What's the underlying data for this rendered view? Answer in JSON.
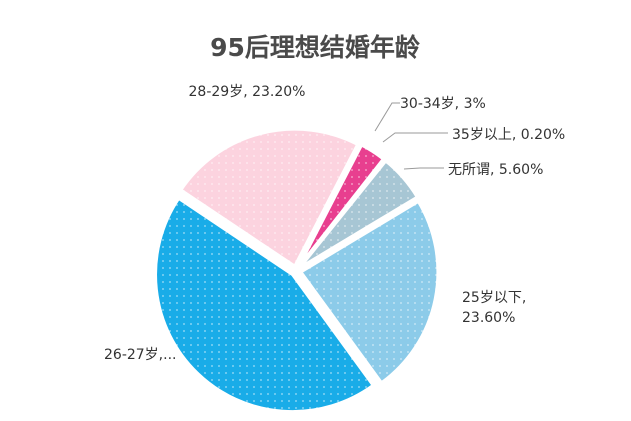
{
  "chart_data": {
    "type": "pie",
    "title": "95后理想结婚年龄",
    "slices": [
      {
        "name": "25岁以下",
        "value": 23.6,
        "label_lines": [
          "25岁以下,",
          "23.60%"
        ],
        "color": "#8ccbe9"
      },
      {
        "name": "26-27岁",
        "value": 44.4,
        "label_lines": [
          "26-27岁,..."
        ],
        "color": "#19ace8"
      },
      {
        "name": "28-29岁",
        "value": 23.2,
        "label_lines": [
          "28-29岁, 23.20%"
        ],
        "color": "#fcd3df"
      },
      {
        "name": "30-34岁",
        "value": 3,
        "label_lines": [
          "30-34岁, 3%"
        ],
        "color": "#e83f8f"
      },
      {
        "name": "35岁以上",
        "value": 0.2,
        "label_lines": [
          "35岁以上, 0.20%"
        ],
        "color": "#c8c8c8"
      },
      {
        "name": "无所谓",
        "value": 5.6,
        "label_lines": [
          "无所谓, 5.60%"
        ],
        "color": "#a7c6d4"
      }
    ]
  }
}
